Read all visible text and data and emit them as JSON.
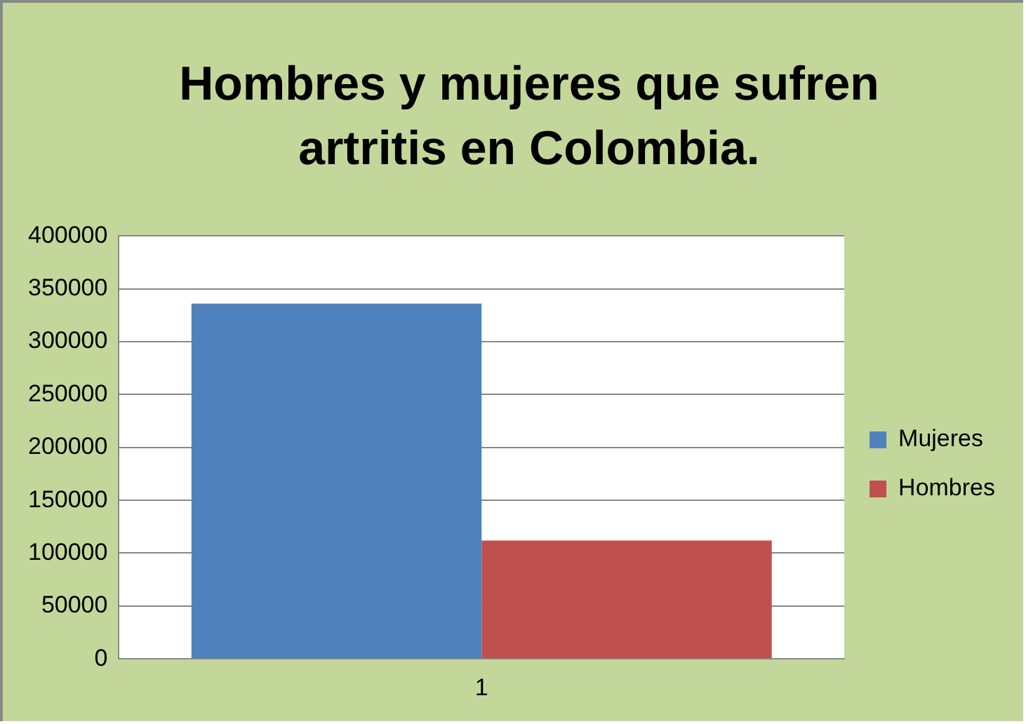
{
  "chart_data": {
    "type": "bar",
    "title": "Hombres y mujeres que sufren artritis en Colombia.",
    "categories": [
      "1"
    ],
    "series": [
      {
        "name": "Mujeres",
        "color": "#4f81bd",
        "values": [
          336000
        ]
      },
      {
        "name": "Hombres",
        "color": "#c0504d",
        "values": [
          112000
        ]
      }
    ],
    "ylim": [
      0,
      400000
    ],
    "yticks": [
      0,
      50000,
      100000,
      150000,
      200000,
      250000,
      300000,
      350000,
      400000
    ],
    "grid": "y",
    "legend": "right"
  }
}
